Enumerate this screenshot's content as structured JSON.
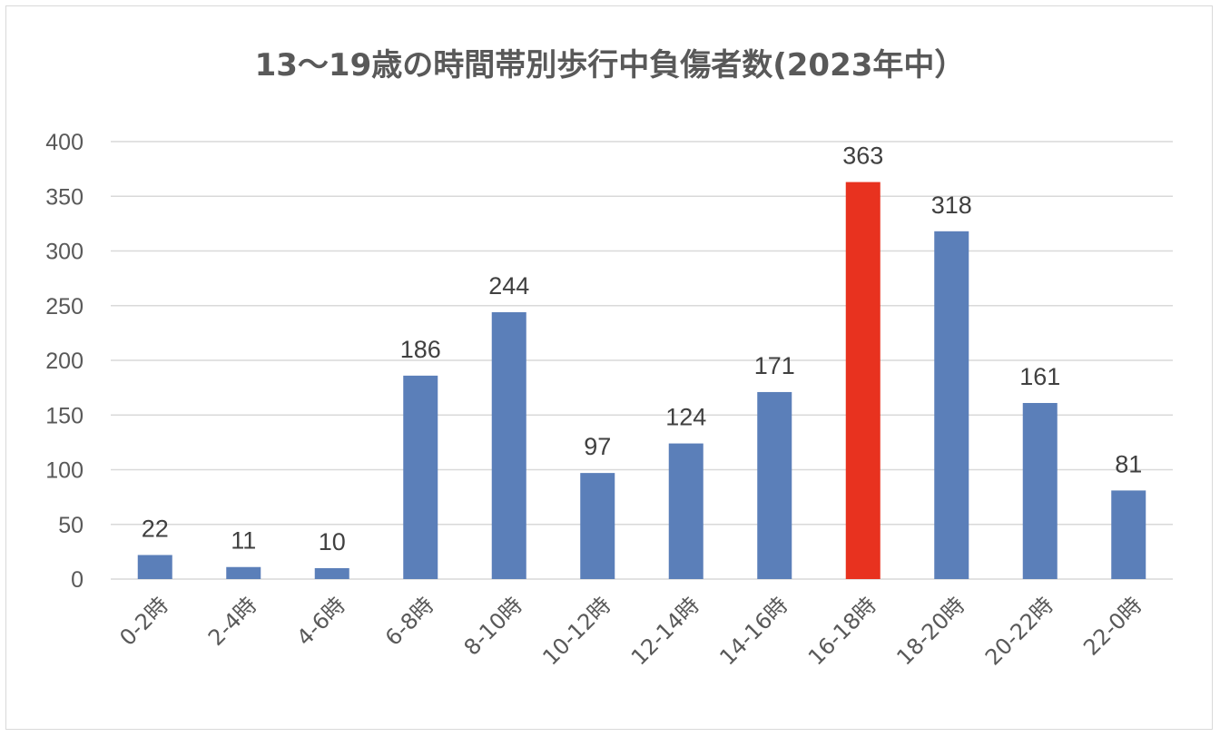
{
  "chart_data": {
    "type": "bar",
    "title": "13～19歳の時間帯別歩行中負傷者数(2023年中）",
    "categories": [
      "0-2時",
      "2-4時",
      "4-6時",
      "6-8時",
      "8-10時",
      "10-12時",
      "12-14時",
      "14-16時",
      "16-18時",
      "18-20時",
      "20-22時",
      "22-0時"
    ],
    "values": [
      22,
      11,
      10,
      186,
      244,
      97,
      124,
      171,
      363,
      318,
      161,
      81
    ],
    "highlight_index": 8,
    "ylim": [
      0,
      400
    ],
    "yticks": [
      0,
      50,
      100,
      150,
      200,
      250,
      300,
      350,
      400
    ],
    "grid": true,
    "data_labels": true,
    "colors": {
      "bar": "#5b7fb9",
      "highlight": "#e8321f",
      "grid": "#d9d9d9"
    }
  }
}
